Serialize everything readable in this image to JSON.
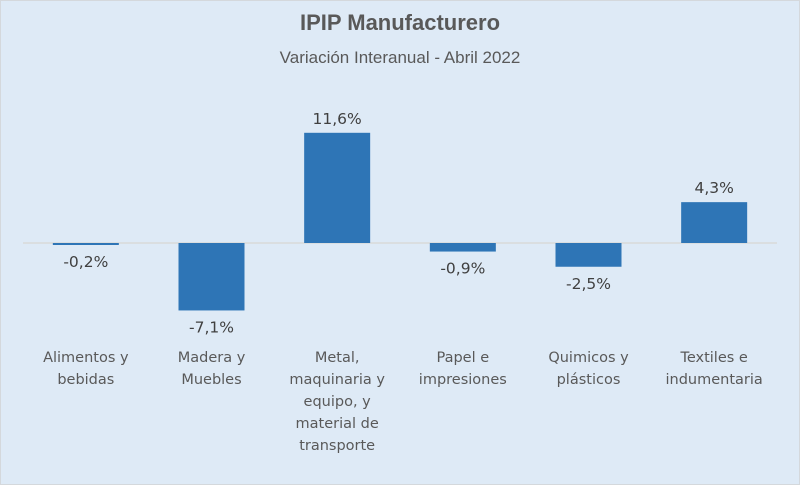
{
  "chart_data": {
    "type": "bar",
    "title": "IPIP Manufacturero",
    "subtitle": "Variación Interanual - Abril 2022",
    "xlabel": "",
    "ylabel": "",
    "categories": [
      "Alimentos y\nbebidas",
      "Madera y\nMuebles",
      "Metal,\nmaquinaria y\nequipo, y\nmaterial de\ntransporte",
      "Papel e\nimpresiones",
      "Quimicos y\nplásticos",
      "Textiles e\nindumentaria"
    ],
    "values": [
      -0.2,
      -7.1,
      11.6,
      -0.9,
      -2.5,
      4.3
    ],
    "data_labels": [
      "-0,2%",
      "-7,1%",
      "11,6%",
      "-0,9%",
      "-2,5%",
      "4,3%"
    ],
    "unit": "%",
    "ylim": [
      -8,
      12
    ],
    "grid": false,
    "legend": "none",
    "colors": {
      "bar": "#2e75b6",
      "axis": "#d9d9d9",
      "text": "#595959",
      "label": "#404040",
      "background": "#deeaf6"
    }
  }
}
